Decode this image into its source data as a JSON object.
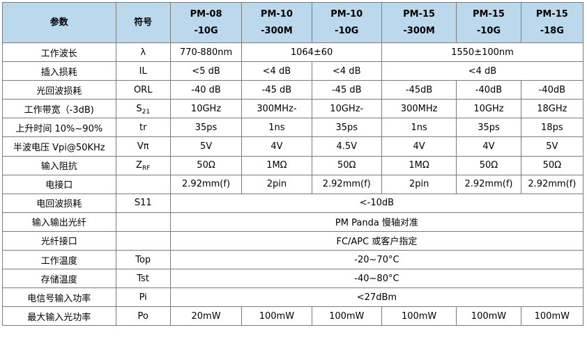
{
  "header": {
    "param": "参数",
    "symbol": "符号",
    "models": [
      {
        "line1": "PM-08",
        "line2": "-10G"
      },
      {
        "line1": "PM-10",
        "line2": "-300M"
      },
      {
        "line1": "PM-10",
        "line2": "-10G"
      },
      {
        "line1": "PM-15",
        "line2": "-300M"
      },
      {
        "line1": "PM-15",
        "line2": "-10G"
      },
      {
        "line1": "PM-15",
        "line2": "-18G"
      }
    ]
  },
  "rows": [
    {
      "param": "工作波长",
      "symbol": "λ",
      "v1": "770-880nm",
      "v2": "1064±60",
      "v3": "1550±100nm"
    },
    {
      "param": "插入损耗",
      "symbol": "IL",
      "v1": "<5 dB",
      "v2": "<4 dB",
      "v3": "<4 dB",
      "v4": "<4 dB"
    },
    {
      "param": "光回波损耗",
      "symbol": "ORL",
      "v1": "-40 dB",
      "v2": "-45 dB",
      "v3": "-45 dB",
      "v4": "-45dB",
      "v5": "-40dB",
      "v6": "-40dB"
    },
    {
      "param": "工作带宽（-3dB)",
      "symbol_main": "S",
      "symbol_sub": "21",
      "v1": "10GHz",
      "v2": "300MHz-",
      "v3": "10GHz-",
      "v4": "300MHz",
      "v5": "10GHz",
      "v6": "18GHz"
    },
    {
      "param": "上升时间 10%~90%",
      "symbol": "tr",
      "v1": "35ps",
      "v2": "1ns",
      "v3": "35ps",
      "v4": "1ns",
      "v5": "35ps",
      "v6": "18ps"
    },
    {
      "param": "半波电压 Vpi@50KHz",
      "symbol": "Vπ",
      "v1": "5V",
      "v2": "4V",
      "v3": "4.5V",
      "v4": "4V",
      "v5": "4V",
      "v6": "5V"
    },
    {
      "param": "输入阻抗",
      "symbol_main": "Z",
      "symbol_sub": "RF",
      "v1": "50Ω",
      "v2": "1MΩ",
      "v3": "50Ω",
      "v4": "1MΩ",
      "v5": "50Ω",
      "v6": "50Ω"
    },
    {
      "param": "电接口",
      "symbol": "",
      "v1": "2.92mm(f)",
      "v2": "2pin",
      "v3": "2.92mm(f)",
      "v4": "2pin",
      "v5": "2.92mm(f)",
      "v6": "2.92mm(f)"
    },
    {
      "param": "电回波损耗",
      "symbol": "S11",
      "span": "<-10dB"
    },
    {
      "param": "输入输出光纤",
      "symbol": "",
      "span": "PM Panda 慢轴对准"
    },
    {
      "param": "光纤接口",
      "symbol": "",
      "span": "FC/APC 或客户指定"
    },
    {
      "param": "工作温度",
      "symbol": "Top",
      "span": "-20~70°C"
    },
    {
      "param": "存储温度",
      "symbol": "Tst",
      "span": "-40~80°C"
    },
    {
      "param": "电信号输入功率",
      "symbol": "Pi",
      "span": "<27dBm"
    },
    {
      "param": "最大输入光功率",
      "symbol": "Po",
      "v1": "20mW",
      "v2": "100mW",
      "v3": "100mW",
      "v4": "100mW",
      "v5": "100mW",
      "v6": "100mW"
    }
  ],
  "colors": {
    "header_bg": "#bcd8ec",
    "border": "#7a7a7a"
  }
}
